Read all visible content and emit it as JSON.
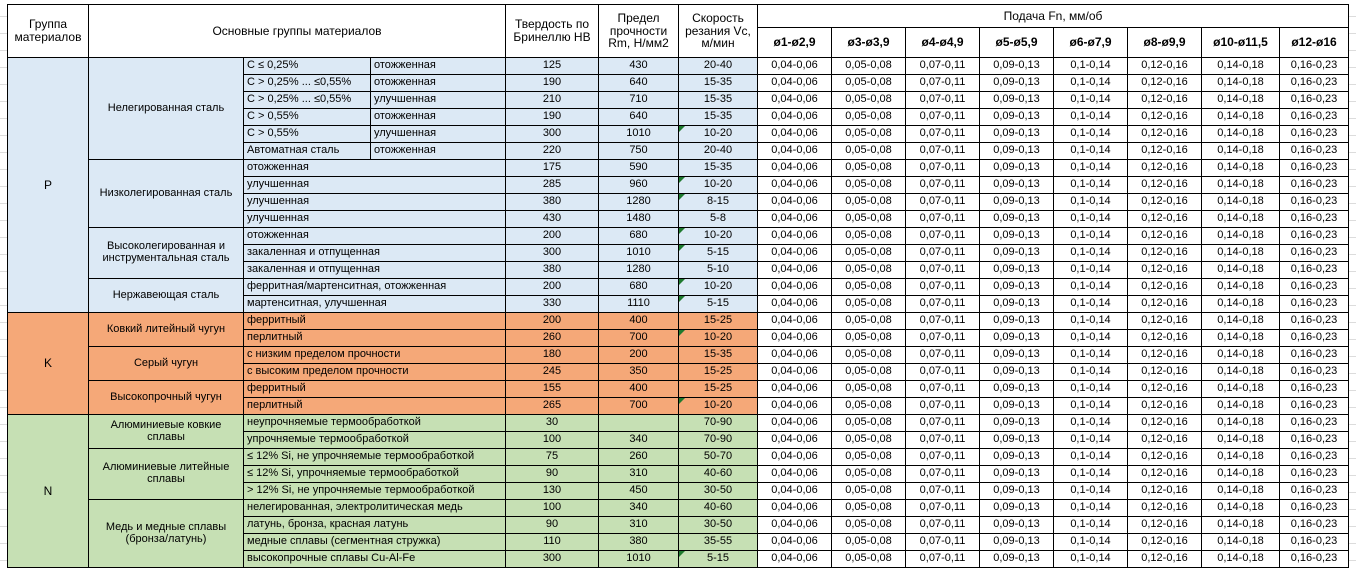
{
  "header": {
    "col_group": "Группа материалов",
    "col_main_groups": "Основные группы материалов",
    "col_hardness": "Твердость по Бринеллю HB",
    "col_strength": "Предел прочности Rm, Н/мм2",
    "col_speed": "Скорость резания Vc, м/мин",
    "feed_title": "Подача Fn, мм/об",
    "feed_columns": [
      "ø1-ø2,9",
      "ø3-ø3,9",
      "ø4-ø4,9",
      "ø5-ø5,9",
      "ø6-ø7,9",
      "ø8-ø9,9",
      "ø10-ø11,5",
      "ø12-ø16"
    ]
  },
  "feed_values": [
    "0,04-0,06",
    "0,05-0,08",
    "0,07-0,11",
    "0,09-0,13",
    "0,1-0,14",
    "0,12-0,16",
    "0,14-0,18",
    "0,16-0,23"
  ],
  "colors": {
    "section_p": "#dce9f5",
    "section_k": "#f5a878",
    "section_n": "#c6e0b4",
    "note_marker": "#1f7a2e",
    "border": "#000000"
  },
  "sections": [
    {
      "code": "P",
      "color": "#dce9f5",
      "groups": [
        {
          "name": "Нелегированная сталь",
          "rows": [
            {
              "c1": "С ≤ 0,25%",
              "c2": "отожженная",
              "hb": "125",
              "rm": "430",
              "vc": "20-40",
              "marker": false
            },
            {
              "c1": "С > 0,25% ... ≤0,55%",
              "c2": "отожженная",
              "hb": "190",
              "rm": "640",
              "vc": "15-35",
              "marker": false
            },
            {
              "c1": "С > 0,25% ... ≤0,55%",
              "c2": "улучшенная",
              "hb": "210",
              "rm": "710",
              "vc": "15-35",
              "marker": false
            },
            {
              "c1": "С > 0,55%",
              "c2": "отожженная",
              "hb": "190",
              "rm": "640",
              "vc": "15-35",
              "marker": false
            },
            {
              "c1": "С > 0,55%",
              "c2": "улучшенная",
              "hb": "300",
              "rm": "1010",
              "vc": "10-20",
              "marker": true
            },
            {
              "c1": "Автоматная сталь",
              "c2": "отожженная",
              "hb": "220",
              "rm": "750",
              "vc": "20-40",
              "marker": false
            }
          ]
        },
        {
          "name": "Низколегированная сталь",
          "rows": [
            {
              "desc": "отожженная",
              "hb": "175",
              "rm": "590",
              "vc": "15-35",
              "marker": false
            },
            {
              "desc": "улучшенная",
              "hb": "285",
              "rm": "960",
              "vc": "10-20",
              "marker": true
            },
            {
              "desc": "улучшенная",
              "hb": "380",
              "rm": "1280",
              "vc": "8-15",
              "marker": true
            },
            {
              "desc": "улучшенная",
              "hb": "430",
              "rm": "1480",
              "vc": "5-8",
              "marker": false
            }
          ]
        },
        {
          "name": "Высоколегированная и инструментальная сталь",
          "rows": [
            {
              "desc": "отожженная",
              "hb": "200",
              "rm": "680",
              "vc": "10-20",
              "marker": true
            },
            {
              "desc": "закаленная и отпущенная",
              "hb": "300",
              "rm": "1010",
              "vc": "5-15",
              "marker": true
            },
            {
              "desc": "закаленная и отпущенная",
              "hb": "380",
              "rm": "1280",
              "vc": "5-10",
              "marker": false
            }
          ]
        },
        {
          "name": "Нержавеющая сталь",
          "rows": [
            {
              "desc": "ферритная/мартенситная, отожженная",
              "hb": "200",
              "rm": "680",
              "vc": "10-20",
              "marker": true
            },
            {
              "desc": "мартенситная, улучшенная",
              "hb": "330",
              "rm": "1110",
              "vc": "5-15",
              "marker": true
            }
          ]
        }
      ]
    },
    {
      "code": "K",
      "color": "#f5a878",
      "groups": [
        {
          "name": "Ковкий литейный чугун",
          "rows": [
            {
              "desc": "ферритный",
              "hb": "200",
              "rm": "400",
              "vc": "15-25",
              "marker": false
            },
            {
              "desc": "перлитный",
              "hb": "260",
              "rm": "700",
              "vc": "10-20",
              "marker": true
            }
          ]
        },
        {
          "name": "Серый чугун",
          "rows": [
            {
              "desc": "с низким пределом прочности",
              "hb": "180",
              "rm": "200",
              "vc": "15-35",
              "marker": false
            },
            {
              "desc": "с высоким пределом прочности",
              "hb": "245",
              "rm": "350",
              "vc": "15-25",
              "marker": false
            }
          ]
        },
        {
          "name": "Высокопрочный чугун",
          "rows": [
            {
              "desc": "ферритный",
              "hb": "155",
              "rm": "400",
              "vc": "15-25",
              "marker": false
            },
            {
              "desc": "перлитный",
              "hb": "265",
              "rm": "700",
              "vc": "10-20",
              "marker": true
            }
          ]
        }
      ]
    },
    {
      "code": "N",
      "color": "#c6e0b4",
      "groups": [
        {
          "name": "Алюминиевые ковкие сплавы",
          "rows": [
            {
              "desc": "неупрочняемые термообработкой",
              "hb": "30",
              "rm": "",
              "vc": "70-90",
              "marker": false
            },
            {
              "desc": "упрочняемые термообработкой",
              "hb": "100",
              "rm": "340",
              "vc": "70-90",
              "marker": false
            }
          ]
        },
        {
          "name": "Алюминиевые литейные сплавы",
          "rows": [
            {
              "desc": "≤ 12% Si, не упрочняемые термообработкой",
              "hb": "75",
              "rm": "260",
              "vc": "50-70",
              "marker": false
            },
            {
              "desc": "≤ 12% Si, упрочняемые термообработкой",
              "hb": "90",
              "rm": "310",
              "vc": "40-60",
              "marker": false
            },
            {
              "desc": "> 12% Si, не упрочняемые термообработкой",
              "hb": "130",
              "rm": "450",
              "vc": "30-50",
              "marker": false
            }
          ]
        },
        {
          "name": "Медь и медные сплавы (бронза/латунь)",
          "rows": [
            {
              "desc": "нелегированная, электролитическая медь",
              "hb": "100",
              "rm": "340",
              "vc": "40-60",
              "marker": false
            },
            {
              "desc": "латунь, бронза, красная латунь",
              "hb": "90",
              "rm": "310",
              "vc": "30-50",
              "marker": false
            },
            {
              "desc": "медные сплавы (сегментная стружка)",
              "hb": "110",
              "rm": "380",
              "vc": "35-55",
              "marker": false
            },
            {
              "desc": "высокопрочные сплавы Cu-Al-Fe",
              "hb": "300",
              "rm": "1010",
              "vc": "5-15",
              "marker": true
            }
          ]
        }
      ]
    }
  ]
}
